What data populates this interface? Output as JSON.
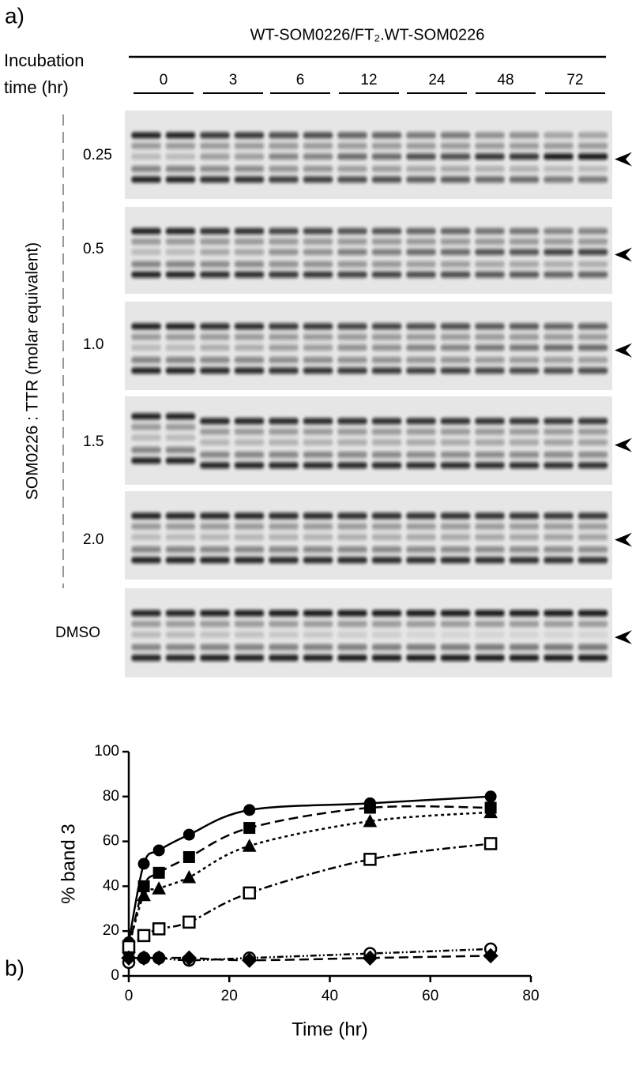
{
  "panel_a": {
    "label": "a)",
    "header": "WT-SOM0226/FT₂.WT-SOM0226",
    "row_header": "Incubation time (hr)",
    "times": [
      "0",
      "3",
      "6",
      "12",
      "24",
      "48",
      "72"
    ],
    "side_label": "SOM0226 : TTR (molar equivalent)",
    "lanes": [
      "0.25",
      "0.5",
      "1.0",
      "1.5",
      "2.0",
      "DMSO"
    ]
  },
  "panel_b": {
    "label": "b)",
    "chart_data": {
      "type": "line",
      "x_label": "Time (hr)",
      "y_label": "% band 3",
      "xlim": [
        0,
        80
      ],
      "ylim": [
        0,
        100
      ],
      "xticks": [
        0,
        20,
        40,
        60,
        80
      ],
      "yticks": [
        0,
        20,
        40,
        60,
        80,
        100
      ],
      "x": [
        0,
        3,
        6,
        12,
        24,
        48,
        72
      ],
      "series": [
        {
          "color": "#000000",
          "marker": "circle",
          "filled": true,
          "line_style": "solid",
          "values": [
            15,
            50,
            56,
            63,
            74,
            77,
            80
          ]
        },
        {
          "color": "#000000",
          "marker": "square",
          "filled": true,
          "line_style": "dashed",
          "values": [
            12,
            40,
            46,
            53,
            66,
            75,
            75
          ]
        },
        {
          "color": "#000000",
          "marker": "triangle",
          "filled": true,
          "line_style": "dotted",
          "values": [
            13,
            36,
            39,
            44,
            58,
            69,
            73
          ]
        },
        {
          "color": "#000000",
          "marker": "square",
          "filled": false,
          "line_style": "dashdot",
          "values": [
            13,
            18,
            21,
            24,
            37,
            52,
            59
          ]
        },
        {
          "color": "#000000",
          "marker": "circle",
          "filled": false,
          "line_style": "dashdotdot",
          "values": [
            6,
            8,
            8,
            7,
            8,
            10,
            12
          ]
        },
        {
          "color": "#000000",
          "marker": "diamond",
          "filled": true,
          "line_style": "dashed",
          "values": [
            8,
            8,
            8,
            8,
            7,
            8,
            9
          ]
        }
      ]
    }
  }
}
